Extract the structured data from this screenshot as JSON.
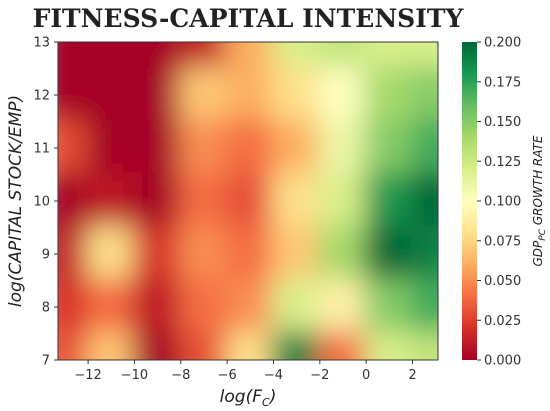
{
  "chart_data": {
    "type": "heatmap",
    "title": "FITNESS-CAPITAL INTENSITY",
    "xlabel": "log(F_C)",
    "ylabel": "log(CAPITAL STOCK/EMP)",
    "xlim": [
      -13.3,
      3.1
    ],
    "ylim": [
      7,
      13
    ],
    "x_ticks": [
      "−12",
      "−10",
      "−8",
      "−6",
      "−4",
      "−2",
      "0",
      "2"
    ],
    "x_tick_values": [
      -12,
      -10,
      -8,
      -6,
      -4,
      -2,
      0,
      2
    ],
    "y_ticks": [
      "7",
      "8",
      "9",
      "10",
      "11",
      "12",
      "13"
    ],
    "y_tick_values": [
      7,
      8,
      9,
      10,
      11,
      12,
      13
    ],
    "colorbar": {
      "label": "GDP_PC GROWTH RATE",
      "min": 0.0,
      "max": 0.2,
      "ticks": [
        "0.000",
        "0.025",
        "0.050",
        "0.075",
        "0.100",
        "0.125",
        "0.150",
        "0.175",
        "0.200"
      ],
      "tick_values": [
        0,
        0.025,
        0.05,
        0.075,
        0.1,
        0.125,
        0.15,
        0.175,
        0.2
      ],
      "colormap": [
        "#a50026",
        "#d73027",
        "#f46d43",
        "#fdae61",
        "#fee08b",
        "#ffffbf",
        "#d9ef8b",
        "#a6d96a",
        "#66bd63",
        "#1a9850",
        "#006837"
      ]
    },
    "grid": false,
    "z_x": [
      -13,
      -11,
      -9,
      -7,
      -5,
      -3,
      -1,
      1,
      3
    ],
    "z_y": [
      13,
      12,
      11,
      10,
      9,
      8,
      7
    ],
    "z": [
      [
        0.0,
        0.0,
        0.0,
        0.01,
        0.06,
        0.12,
        0.13,
        0.12,
        0.12
      ],
      [
        0.0,
        0.0,
        0.0,
        0.07,
        0.06,
        0.08,
        0.1,
        0.14,
        0.15
      ],
      [
        0.03,
        0.0,
        0.0,
        0.05,
        0.04,
        0.06,
        0.11,
        0.15,
        0.17
      ],
      [
        0.0,
        0.01,
        0.0,
        0.04,
        0.03,
        0.08,
        0.12,
        0.18,
        0.2
      ],
      [
        0.01,
        0.08,
        0.02,
        0.05,
        0.04,
        0.07,
        0.14,
        0.2,
        0.19
      ],
      [
        0.02,
        0.04,
        0.01,
        0.04,
        0.05,
        0.12,
        0.09,
        0.15,
        0.17
      ],
      [
        0.03,
        0.07,
        0.0,
        0.03,
        0.08,
        0.19,
        0.04,
        0.12,
        0.13
      ]
    ]
  }
}
